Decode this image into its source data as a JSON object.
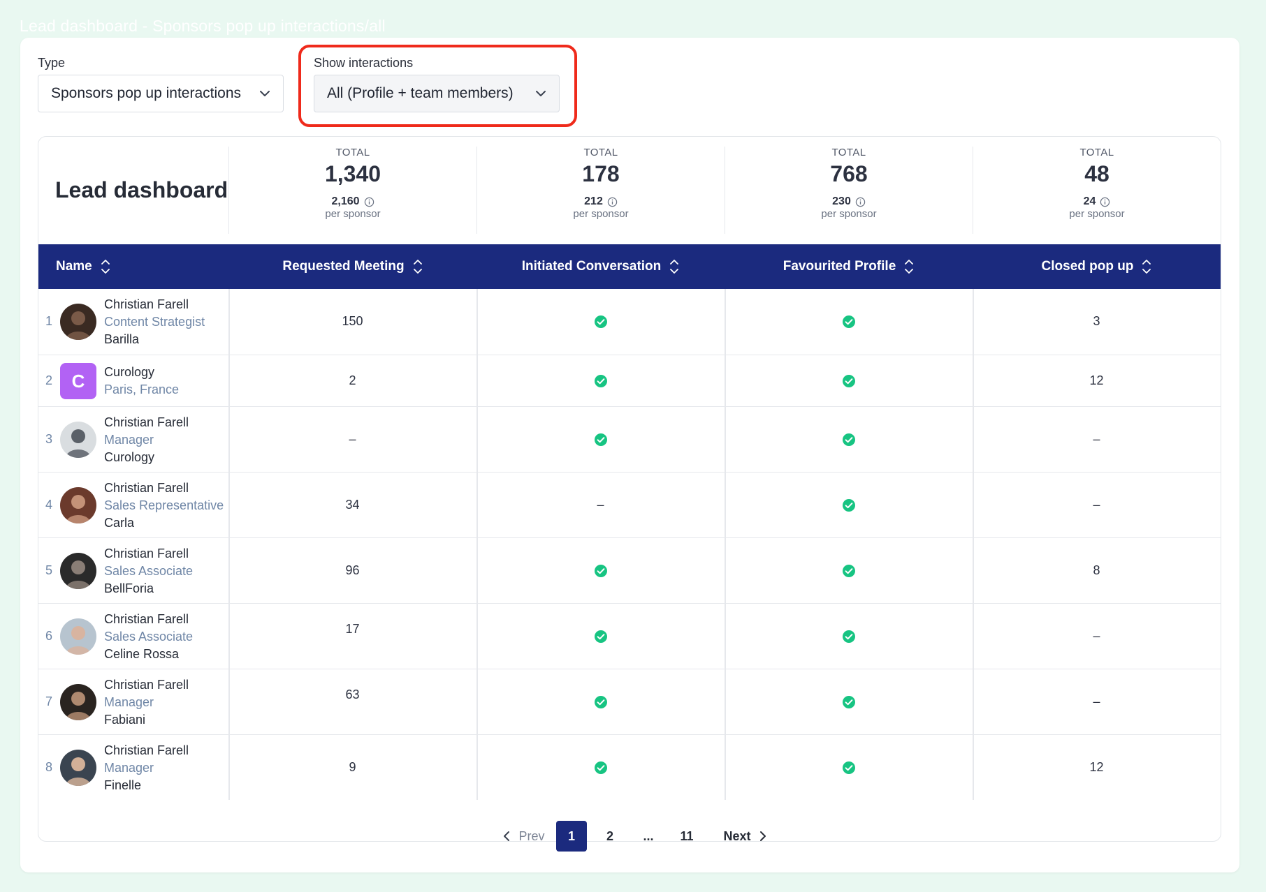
{
  "page_caption": "Lead dashboard - Sponsors pop up interactions/all",
  "filters": {
    "type_label": "Type",
    "type_value": "Sponsors pop up interactions",
    "show_label": "Show interactions",
    "show_value": "All (Profile + team members)"
  },
  "board": {
    "title": "Lead dashboard",
    "stats": [
      {
        "caption": "TOTAL",
        "total": "1,340",
        "sub": "2,160",
        "per": "per sponsor"
      },
      {
        "caption": "TOTAL",
        "total": "178",
        "sub": "212",
        "per": "per sponsor"
      },
      {
        "caption": "TOTAL",
        "total": "768",
        "sub": "230",
        "per": "per sponsor"
      },
      {
        "caption": "TOTAL",
        "total": "48",
        "sub": "24",
        "per": "per sponsor"
      }
    ],
    "columns": [
      "Name",
      "Requested Meeting",
      "Initiated Conversation",
      "Favourited Profile",
      "Closed pop up"
    ]
  },
  "rows": [
    {
      "num": "1",
      "name": "Christian Farell",
      "role": "Content Strategist",
      "company": "Barilla",
      "meeting": "150",
      "conversation": "check",
      "favourited": "check",
      "closed": "3",
      "avatar": "photo"
    },
    {
      "num": "2",
      "name": "Curology",
      "role": "Paris, France",
      "company": "",
      "meeting": "2",
      "conversation": "check",
      "favourited": "check",
      "closed": "12",
      "avatar": "C"
    },
    {
      "num": "3",
      "name": "Christian Farell",
      "role": "Manager",
      "company": "Curology",
      "meeting": "–",
      "conversation": "check",
      "favourited": "check",
      "closed": "–",
      "avatar": "photo"
    },
    {
      "num": "4",
      "name": "Christian Farell",
      "role": "Sales Representative",
      "company": "Carla",
      "meeting": "34",
      "conversation": "–",
      "favourited": "check",
      "closed": "–",
      "avatar": "photo"
    },
    {
      "num": "5",
      "name": "Christian Farell",
      "role": "Sales Associate",
      "company": "BellForia",
      "meeting": "96",
      "conversation": "check",
      "favourited": "check",
      "closed": "8",
      "avatar": "photo"
    },
    {
      "num": "6",
      "name": "Christian Farell",
      "role": "Sales Associate",
      "company": "Celine Rossa",
      "meeting": "17",
      "conversation": "check",
      "favourited": "check",
      "closed": "–",
      "avatar": "photo"
    },
    {
      "num": "7",
      "name": "Christian Farell",
      "role": "Manager",
      "company": "Fabiani",
      "meeting": "63",
      "conversation": "check",
      "favourited": "check",
      "closed": "–",
      "avatar": "photo"
    },
    {
      "num": "8",
      "name": "Christian Farell",
      "role": "Manager",
      "company": "Finelle",
      "meeting": "9",
      "conversation": "check",
      "favourited": "check",
      "closed": "12",
      "avatar": "photo"
    }
  ],
  "pagination": {
    "prev": "Prev",
    "pages": [
      "1",
      "2",
      "...",
      "11"
    ],
    "active": "1",
    "next": "Next"
  },
  "colors": {
    "header_bg": "#1b2a7e",
    "check": "#17c482",
    "highlight": "#ef2a1b",
    "letter_avatar": "#b262f4"
  },
  "icons": {
    "chevron": "chevron-down-icon",
    "sort": "sort-icon",
    "info": "info-icon",
    "check": "check-circle-icon"
  }
}
